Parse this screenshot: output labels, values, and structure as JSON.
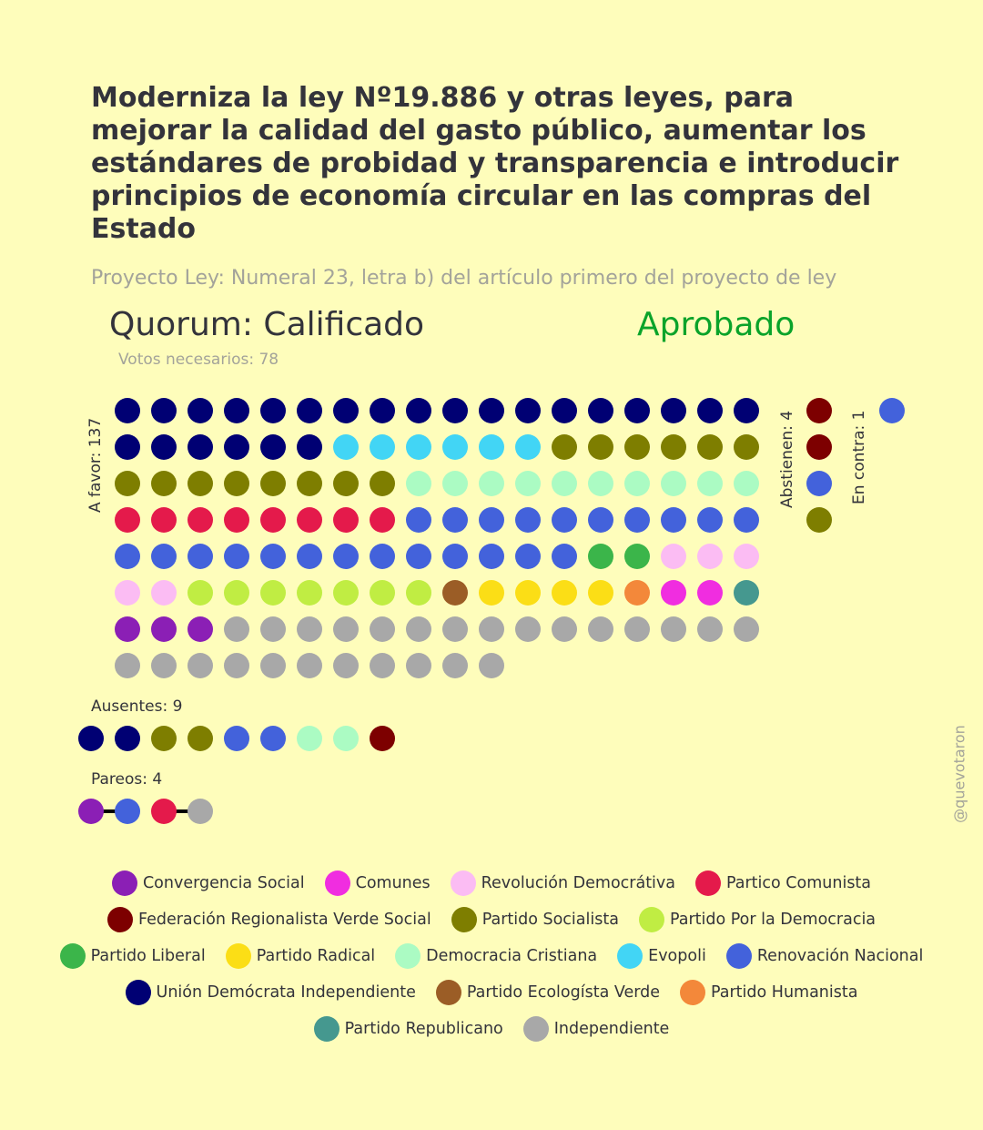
{
  "title": "Moderniza la ley Nº19.886 y otras leyes, para mejorar la calidad del gasto público, aumentar los estándares de probidad y transparencia e introducir principios de economía circular en las compras del Estado",
  "subtitle": "Proyecto Ley: Numeral 23, letra b) del artículo primero del proyecto de ley",
  "quorum": "Quorum: Calificado",
  "result": {
    "text": "Aprobado",
    "color": "#0aa32a"
  },
  "votes_needed": "Votos necesarios: 78",
  "labels": {
    "a_favor": "A favor: 137",
    "abstienen": "Abstienen: 4",
    "en_contra": "En contra: 1",
    "ausentes": "Ausentes: 9",
    "pareos": "Pareos: 4"
  },
  "watermark": "@quevotaron",
  "parties": {
    "CS": {
      "name": "Convergencia Social",
      "color": "#8b1fb5"
    },
    "COM": {
      "name": "Comunes",
      "color": "#f02de0"
    },
    "RD": {
      "name": "Revolución Democrátiva",
      "color": "#fbbcf3"
    },
    "PC": {
      "name": "Partico Comunista",
      "color": "#e41a4b"
    },
    "FRVS": {
      "name": "Federación Regionalista Verde Social",
      "color": "#7d0000"
    },
    "PS": {
      "name": "Partido Socialista",
      "color": "#7e7e00"
    },
    "PPD": {
      "name": "Partido Por la Democracia",
      "color": "#c0ed43"
    },
    "PL": {
      "name": "Partido Liberal",
      "color": "#3bb54a"
    },
    "PR": {
      "name": "Partido Radical",
      "color": "#fbde16"
    },
    "DC": {
      "name": "Democracia Cristiana",
      "color": "#abfbc3"
    },
    "EVO": {
      "name": "Evopoli",
      "color": "#42d5f5"
    },
    "RN": {
      "name": "Renovación Nacional",
      "color": "#4362db"
    },
    "UDI": {
      "name": "Unión Demócrata Independiente",
      "color": "#000073"
    },
    "PEV": {
      "name": "Partido Ecologísta Verde",
      "color": "#9b5d26"
    },
    "PH": {
      "name": "Partido Humanista",
      "color": "#f3883a"
    },
    "REP": {
      "name": "Partido Republicano",
      "color": "#45988f"
    },
    "IND": {
      "name": "Independiente",
      "color": "#a8a8a8"
    }
  },
  "legend_rows": [
    [
      "CS",
      "COM",
      "RD",
      "PC"
    ],
    [
      "FRVS",
      "PS",
      "PPD"
    ],
    [
      "PL",
      "PR",
      "DC",
      "EVO",
      "RN"
    ],
    [
      "UDI",
      "PEV",
      "PH"
    ],
    [
      "REP",
      "IND"
    ]
  ],
  "a_favor_counts": [
    [
      "UDI",
      24
    ],
    [
      "EVO",
      6
    ],
    [
      "PS",
      14
    ],
    [
      "DC",
      10
    ],
    [
      "PC",
      8
    ],
    [
      "RN",
      23
    ],
    [
      "PL",
      2
    ],
    [
      "RD",
      5
    ],
    [
      "PPD",
      7
    ],
    [
      "PEV",
      1
    ],
    [
      "PR",
      4
    ],
    [
      "PH",
      1
    ],
    [
      "COM",
      2
    ],
    [
      "REP",
      1
    ],
    [
      "CS",
      3
    ],
    [
      "IND",
      26
    ]
  ],
  "abstienen": [
    "FRVS",
    "FRVS",
    "RN",
    "PS"
  ],
  "en_contra": [
    "RN"
  ],
  "ausentes": [
    "UDI",
    "UDI",
    "PS",
    "PS",
    "RN",
    "RN",
    "DC",
    "DC",
    "FRVS"
  ],
  "pareos": [
    [
      "CS",
      "RN"
    ],
    [
      "PC",
      "IND"
    ]
  ]
}
